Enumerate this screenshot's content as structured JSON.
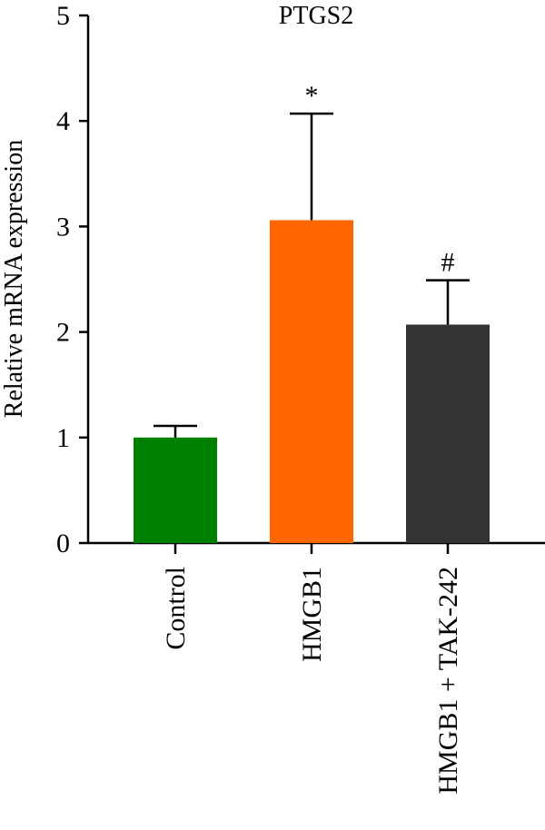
{
  "chart_data": {
    "type": "bar",
    "title": "PTGS2",
    "xlabel": "",
    "ylabel": "Relative mRNA expression",
    "ylim": [
      0,
      5
    ],
    "yticks": [
      "0",
      "1",
      "2",
      "3",
      "4",
      "5"
    ],
    "categories": [
      "Control",
      "HMGB1",
      "HMGB1 + TAK-242"
    ],
    "values": [
      1.0,
      3.06,
      2.07
    ],
    "error_upper": [
      0.11,
      1.01,
      0.42
    ],
    "significance": [
      "",
      "*",
      "#"
    ],
    "colors": [
      "#008000",
      "#ff6600",
      "#333333"
    ],
    "grid": false,
    "legend": "none"
  }
}
